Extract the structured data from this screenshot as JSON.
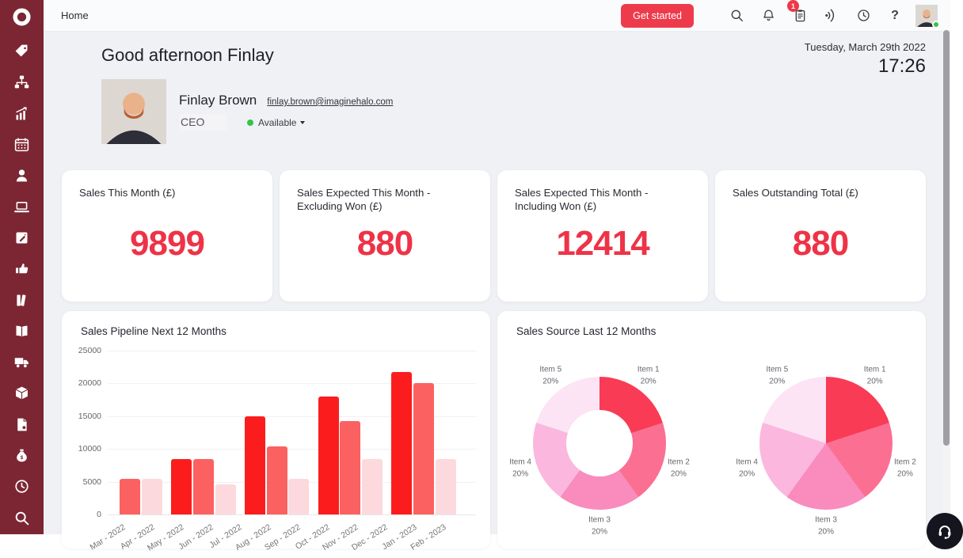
{
  "colors": {
    "sidebar_bg": "#7c2633",
    "accent_red": "#ee3347",
    "button_red": "#ee3b4c",
    "badge_red": "#f03748",
    "status_green": "#35c24d",
    "bar_bright": "#fb1d1d",
    "bar_medium": "#fc6161",
    "bar_pale": "#fcd9dd"
  },
  "sidebar": {
    "logo": "halo-ring-logo",
    "items": [
      {
        "name": "tags"
      },
      {
        "name": "sitemap"
      },
      {
        "name": "sales-growth"
      },
      {
        "name": "calendar"
      },
      {
        "name": "customers"
      },
      {
        "name": "devices"
      },
      {
        "name": "notes"
      },
      {
        "name": "approvals"
      },
      {
        "name": "books"
      },
      {
        "name": "knowledge-base"
      },
      {
        "name": "deliveries"
      },
      {
        "name": "stock"
      },
      {
        "name": "invoices"
      },
      {
        "name": "money"
      },
      {
        "name": "timesheets"
      },
      {
        "name": "search"
      }
    ]
  },
  "topbar": {
    "home_label": "Home",
    "get_started_label": "Get started",
    "notification_count": "1",
    "icons": [
      "search-icon",
      "bell-icon",
      "clipboard-icon",
      "rss-icon",
      "clock-icon",
      "help-icon"
    ]
  },
  "header": {
    "greeting": "Good afternoon Finlay",
    "date": "Tuesday, March 29th 2022",
    "time": "17:26",
    "user": {
      "name": "Finlay Brown",
      "email": "finlay.brown@imaginehalo.com",
      "role": "CEO",
      "status": "Available"
    }
  },
  "stat_cards": [
    {
      "title": "Sales This Month (£)",
      "value": "9899"
    },
    {
      "title": "Sales Expected This Month - Excluding Won (£)",
      "value": "880"
    },
    {
      "title": "Sales Expected This Month - Including Won (£)",
      "value": "12414"
    },
    {
      "title": "Sales Outstanding Total (£)",
      "value": "880"
    }
  ],
  "chart_data": [
    {
      "type": "bar",
      "title": "Sales Pipeline Next 12 Months",
      "x_labels": [
        "Mar - 2022",
        "Apr - 2022",
        "May - 2022",
        "Jun - 2022",
        "Jul - 2022",
        "Aug - 2022",
        "Sep - 2022",
        "Oct - 2022",
        "Nov - 2022",
        "Dec - 2022",
        "Jan - 2023",
        "Feb - 2023"
      ],
      "y_ticks": [
        0,
        5000,
        10000,
        15000,
        20000,
        25000
      ],
      "ylim": [
        0,
        25000
      ],
      "grid": true,
      "series": [
        {
          "name": "series-1",
          "color": "#fb1d1d",
          "values": [
            0,
            8500,
            15000,
            18000,
            21800
          ]
        },
        {
          "name": "series-2",
          "color": "#fc6161",
          "values": [
            5500,
            8500,
            10400,
            14200,
            20000
          ]
        },
        {
          "name": "series-3",
          "color": "#fcd9dd",
          "values": [
            5500,
            4600,
            5500,
            8500,
            8500
          ]
        }
      ]
    },
    {
      "type": "pie",
      "subtype": "donut",
      "title": "Sales Source Last 12 Months",
      "labels": [
        "Item 1",
        "Item 2",
        "Item 3",
        "Item 4",
        "Item 5"
      ],
      "values": [
        20,
        20,
        20,
        20,
        20
      ],
      "colors": [
        "#f93b55",
        "#fb6f92",
        "#f98bbd",
        "#fbb7dd",
        "#fce4f4"
      ]
    },
    {
      "type": "pie",
      "subtype": "full",
      "title": "Sales Source Last 12 Months",
      "labels": [
        "Item 1",
        "Item 2",
        "Item 3",
        "Item 4",
        "Item 5"
      ],
      "values": [
        20,
        20,
        20,
        20,
        20
      ],
      "colors": [
        "#f93b55",
        "#fb6f92",
        "#f98bbd",
        "#fbb7dd",
        "#fce4f4"
      ]
    }
  ]
}
